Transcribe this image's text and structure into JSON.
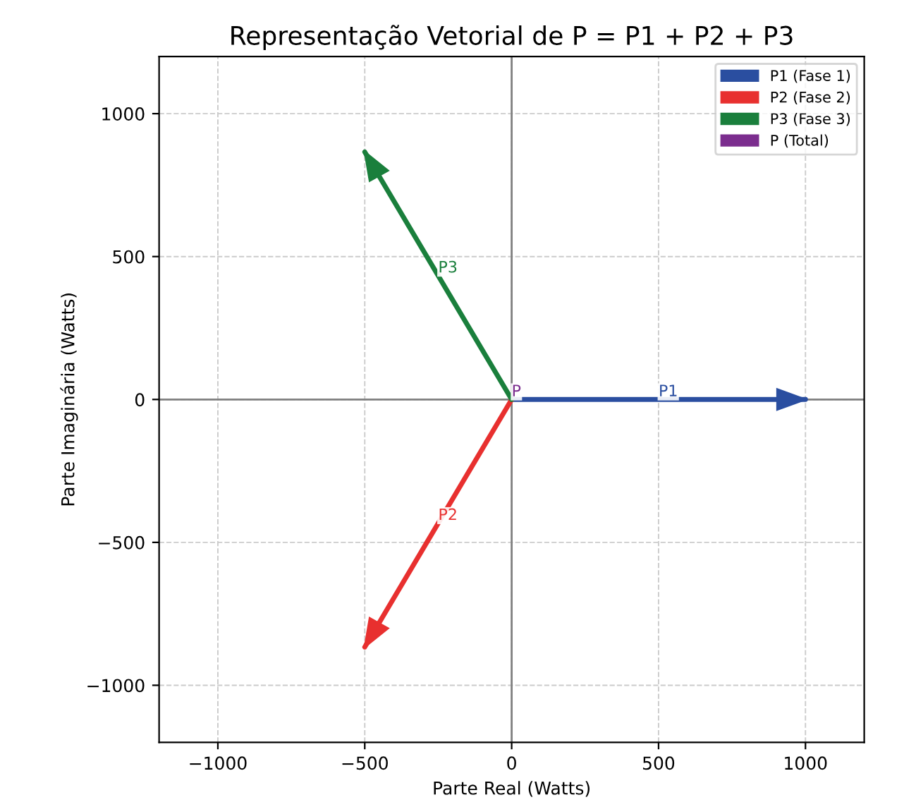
{
  "chart_data": {
    "type": "line",
    "title": "Representação Vetorial de P = P1 + P2 + P3",
    "xlabel": "Parte Real (Watts)",
    "ylabel": "Parte Imaginária (Watts)",
    "series": [
      {
        "color": "#808080",
        "x": [
          -1200,
          1200
        ],
        "values": [
          0,
          0
        ]
      },
      {
        "color": "#808080",
        "x": [
          0,
          0
        ],
        "values": [
          -1200,
          1200
        ]
      },
      {
        "name": "P1 (Fase 1)",
        "color": "#2a4ea0",
        "x": [
          0,
          1000
        ],
        "values": [
          0,
          0
        ]
      },
      {
        "name": "P2 (Fase 2)",
        "color": "#e8302f",
        "x": [
          0,
          -500
        ],
        "values": [
          0,
          -866
        ]
      },
      {
        "name": "P3 (Fase 3)",
        "color": "#1a7f3c",
        "x": [
          0,
          -500
        ],
        "values": [
          0,
          866
        ]
      },
      {
        "name": "P (Total)",
        "color": "#7b2d8e"
      }
    ],
    "annotations": [
      {
        "text": "P1",
        "x": 500,
        "y": 0
      },
      {
        "text": "P2",
        "x": -250,
        "y": -433
      },
      {
        "text": "P3",
        "x": -250,
        "y": 433
      },
      {
        "text": "P",
        "x": 0,
        "y": 0
      }
    ],
    "xlim": [
      -1200,
      1200
    ],
    "ylim": [
      -1200,
      1200
    ],
    "xticks": [
      {
        "value": -1000,
        "label": "−1000"
      },
      {
        "value": -500,
        "label": "−500"
      },
      0,
      500,
      1000
    ],
    "yticks": [
      {
        "value": -1000,
        "label": "−1000"
      },
      {
        "value": -500,
        "label": "−500"
      },
      0,
      500,
      1000
    ],
    "grid": true,
    "legend": "top right",
    "line_style": "solid",
    "marker": "none"
  }
}
